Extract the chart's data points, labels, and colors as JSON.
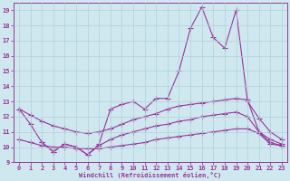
{
  "background_color": "#cfe8ef",
  "grid_color": "#b0d0d8",
  "line_color": "#993399",
  "xlabel": "Windchill (Refroidissement éolien,°C)",
  "xlabel_color": "#993399",
  "tick_color": "#993399",
  "xlim": [
    -0.5,
    23.5
  ],
  "ylim": [
    9,
    19.5
  ],
  "yticks": [
    9,
    10,
    11,
    12,
    13,
    14,
    15,
    16,
    17,
    18,
    19
  ],
  "xticks": [
    0,
    1,
    2,
    3,
    4,
    5,
    6,
    7,
    8,
    9,
    10,
    11,
    12,
    13,
    14,
    15,
    16,
    17,
    18,
    19,
    20,
    21,
    22,
    23
  ],
  "series": [
    {
      "x": [
        0,
        1,
        2,
        3,
        4,
        5,
        6,
        7,
        8,
        9,
        10,
        11,
        12,
        13,
        14,
        15,
        16,
        17,
        18,
        19,
        20,
        21,
        22,
        23
      ],
      "y": [
        12.5,
        11.5,
        10.3,
        9.7,
        10.2,
        10.0,
        9.5,
        10.2,
        12.5,
        12.8,
        13.0,
        12.5,
        13.2,
        13.2,
        15.0,
        17.8,
        19.2,
        17.2,
        16.5,
        19.0,
        13.0,
        11.9,
        11.0,
        10.5
      ]
    },
    {
      "x": [
        0,
        1,
        2,
        3,
        4,
        5,
        6,
        7,
        8,
        9,
        10,
        11,
        12,
        13,
        14,
        15,
        16,
        17,
        18,
        19,
        20,
        21,
        22,
        23
      ],
      "y": [
        12.5,
        12.1,
        11.7,
        11.4,
        11.2,
        11.0,
        10.9,
        11.0,
        11.2,
        11.5,
        11.8,
        12.0,
        12.2,
        12.5,
        12.7,
        12.8,
        12.9,
        13.0,
        13.1,
        13.2,
        13.1,
        11.0,
        10.5,
        10.2
      ]
    },
    {
      "x": [
        0,
        1,
        2,
        3,
        4,
        5,
        6,
        7,
        8,
        9,
        10,
        11,
        12,
        13,
        14,
        15,
        16,
        17,
        18,
        19,
        20,
        21,
        22,
        23
      ],
      "y": [
        10.5,
        10.3,
        10.1,
        10.0,
        10.0,
        9.9,
        9.9,
        9.9,
        10.0,
        10.1,
        10.2,
        10.3,
        10.5,
        10.6,
        10.7,
        10.8,
        10.9,
        11.0,
        11.1,
        11.2,
        11.2,
        10.9,
        10.2,
        10.1
      ]
    },
    {
      "x": [
        2,
        3,
        4,
        5,
        6,
        7,
        8,
        9,
        10,
        11,
        12,
        13,
        14,
        15,
        16,
        17,
        18,
        19,
        20,
        21,
        22,
        23
      ],
      "y": [
        10.3,
        9.7,
        10.2,
        10.0,
        9.5,
        10.1,
        10.5,
        10.8,
        11.0,
        11.2,
        11.4,
        11.5,
        11.7,
        11.8,
        12.0,
        12.1,
        12.2,
        12.3,
        12.0,
        11.0,
        10.3,
        10.1
      ]
    }
  ]
}
